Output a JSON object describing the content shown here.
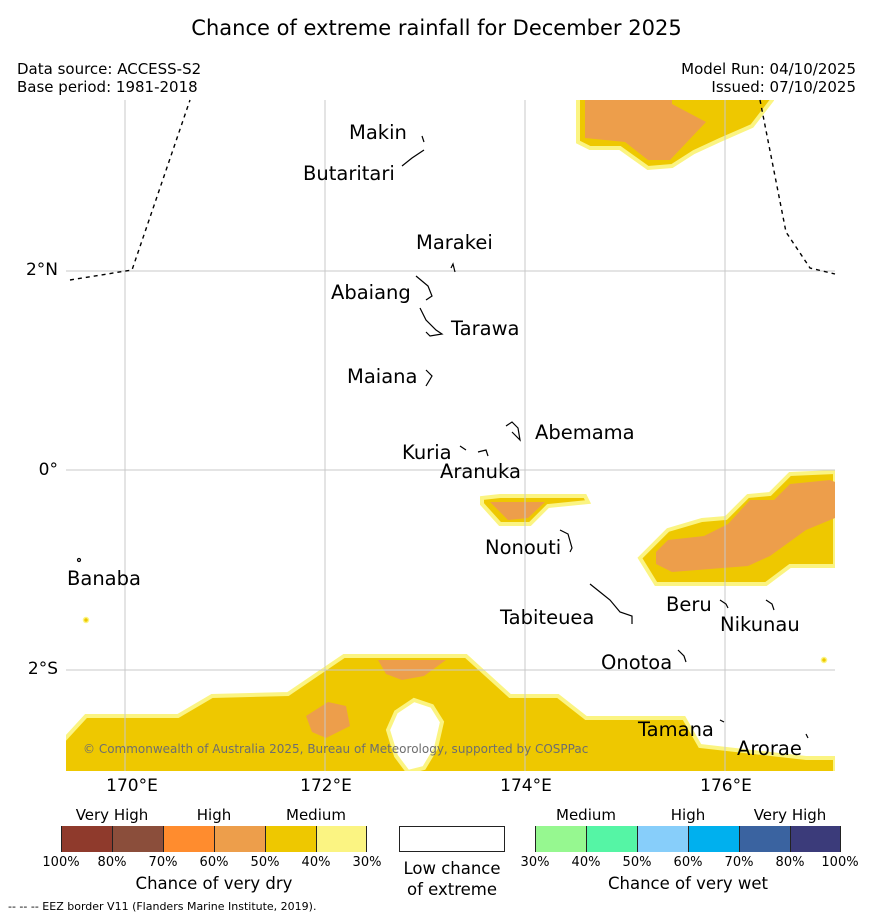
{
  "title": "Chance of extreme rainfall for December 2025",
  "data_source": "Data source: ACCESS-S2",
  "base_period": "Base period: 1981-2018",
  "model_run": "Model Run: 04/10/2025",
  "issued": "Issued: 07/10/2025",
  "y_ticks": [
    "2°N",
    "0°",
    "2°S"
  ],
  "x_ticks": [
    "170°E",
    "172°E",
    "174°E",
    "176°E"
  ],
  "islands": [
    "Makin",
    "Butaritari",
    "Marakei",
    "Abaiang",
    "Tarawa",
    "Maiana",
    "Abemama",
    "Kuria",
    "Aranuka",
    "Nonouti",
    "Banaba",
    "Tabiteuea",
    "Beru",
    "Nikunau",
    "Onotoa",
    "Tamana",
    "Arorae"
  ],
  "copyright": "© Commonwealth of Australia 2025, Bureau of Meteorology, supported by COSPPac",
  "legend": {
    "dry": {
      "headers": [
        "Very High",
        "High",
        "Medium"
      ],
      "ticks": [
        "100%",
        "80%",
        "70%",
        "60%",
        "50%",
        "40%",
        "30%"
      ],
      "colors": [
        "#8f3a2c",
        "#8b4e3b",
        "#ff8c2e",
        "#ed9e4b",
        "#eec800",
        "#fbf482"
      ],
      "title": "Chance of very dry"
    },
    "low": {
      "line1": "Low chance",
      "line2": "of extreme",
      "color": "#ffffff"
    },
    "wet": {
      "headers": [
        "Medium",
        "High",
        "Very High"
      ],
      "ticks": [
        "30%",
        "40%",
        "50%",
        "60%",
        "70%",
        "80%",
        "100%"
      ],
      "colors": [
        "#96f890",
        "#55f5a5",
        "#87cefa",
        "#00b0ee",
        "#3a63a0",
        "#3b3b7a"
      ],
      "title": "Chance of very wet"
    }
  },
  "footnote": "-- -- -- EEZ border V11 (Flanders Marine Institute, 2019).",
  "colors": {
    "medium_dry": "#eec800",
    "high_dry": "#ed9e4b",
    "light_dry": "#fbf482",
    "grid": "#c8c8c8"
  }
}
